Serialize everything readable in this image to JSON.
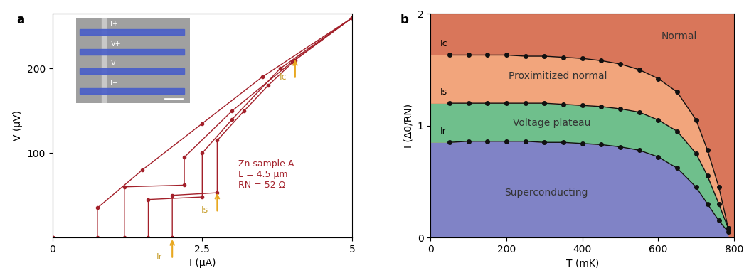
{
  "chart_data": [
    {
      "type": "line",
      "panel": "a",
      "xlabel": "I (μA)",
      "ylabel": "V (μV)",
      "xlim": [
        0,
        5
      ],
      "xticks": [
        0,
        2.5,
        5
      ],
      "ylim": [
        0,
        265
      ],
      "yticks": [
        100,
        200
      ],
      "color": "#a3202a",
      "marker": "circle",
      "line_style": "solid",
      "series": [
        {
          "x": [
            0,
            2.0,
            2.0,
            2.75,
            2.75,
            3.2,
            3.6,
            4.05,
            5
          ],
          "values": [
            0,
            0,
            50,
            53,
            115,
            150,
            180,
            210,
            260
          ]
        },
        {
          "x": [
            0,
            1.6,
            1.6,
            2.5,
            2.5,
            3.0,
            3.8,
            5
          ],
          "values": [
            0,
            0,
            45,
            48,
            100,
            140,
            200,
            260
          ]
        },
        {
          "x": [
            0,
            1.2,
            1.2,
            2.2,
            2.2,
            3.0,
            4.0,
            5
          ],
          "values": [
            0,
            0,
            60,
            62,
            95,
            150,
            208,
            260
          ]
        },
        {
          "x": [
            0,
            0.75,
            0.75,
            1.5,
            2.5,
            3.5,
            5
          ],
          "values": [
            0,
            0,
            35,
            80,
            135,
            190,
            260
          ]
        }
      ],
      "annotations": [
        {
          "text": "Ic",
          "x": 4.05,
          "y": 213
        },
        {
          "text": "Is",
          "x": 2.75,
          "y": 55
        },
        {
          "text": "Ir",
          "x": 2.0,
          "y": 0
        }
      ],
      "sample_text": [
        "Zn sample A",
        "L = 4.5 μm",
        "RN = 52 Ω"
      ],
      "inset": {
        "labels": [
          "I+",
          "V+",
          "V−",
          "I−"
        ]
      }
    },
    {
      "type": "line",
      "panel": "b",
      "xlabel": "T (mK)",
      "ylabel": "I (Δ0/RN)",
      "xlim": [
        0,
        800
      ],
      "xticks": [
        0,
        200,
        400,
        600,
        800
      ],
      "ylim": [
        0,
        2
      ],
      "yticks": [
        0,
        1,
        2
      ],
      "marker": "circle",
      "line_style": "solid",
      "regions": [
        {
          "name": "Normal",
          "color": "#d9765a"
        },
        {
          "name": "Proximitized normal",
          "color": "#f2a57c"
        },
        {
          "name": "Voltage plateau",
          "color": "#6fbf8c"
        },
        {
          "name": "Superconducting",
          "color": "#8083c6"
        }
      ],
      "x": [
        50,
        100,
        150,
        200,
        250,
        300,
        350,
        400,
        450,
        500,
        550,
        600,
        650,
        700,
        730,
        760,
        785
      ],
      "series": [
        {
          "name": "Ic",
          "color": "#111111",
          "values": [
            1.63,
            1.63,
            1.63,
            1.63,
            1.62,
            1.62,
            1.61,
            1.6,
            1.58,
            1.55,
            1.5,
            1.42,
            1.3,
            1.05,
            0.78,
            0.45,
            0.08
          ]
        },
        {
          "name": "Is",
          "color": "#111111",
          "values": [
            1.2,
            1.2,
            1.2,
            1.2,
            1.2,
            1.2,
            1.19,
            1.18,
            1.17,
            1.15,
            1.12,
            1.05,
            0.95,
            0.75,
            0.55,
            0.3,
            0.08
          ]
        },
        {
          "name": "Ir",
          "color": "#111111",
          "values": [
            0.85,
            0.86,
            0.86,
            0.86,
            0.86,
            0.85,
            0.85,
            0.84,
            0.83,
            0.81,
            0.78,
            0.72,
            0.62,
            0.45,
            0.3,
            0.15,
            0.05
          ]
        }
      ]
    }
  ]
}
